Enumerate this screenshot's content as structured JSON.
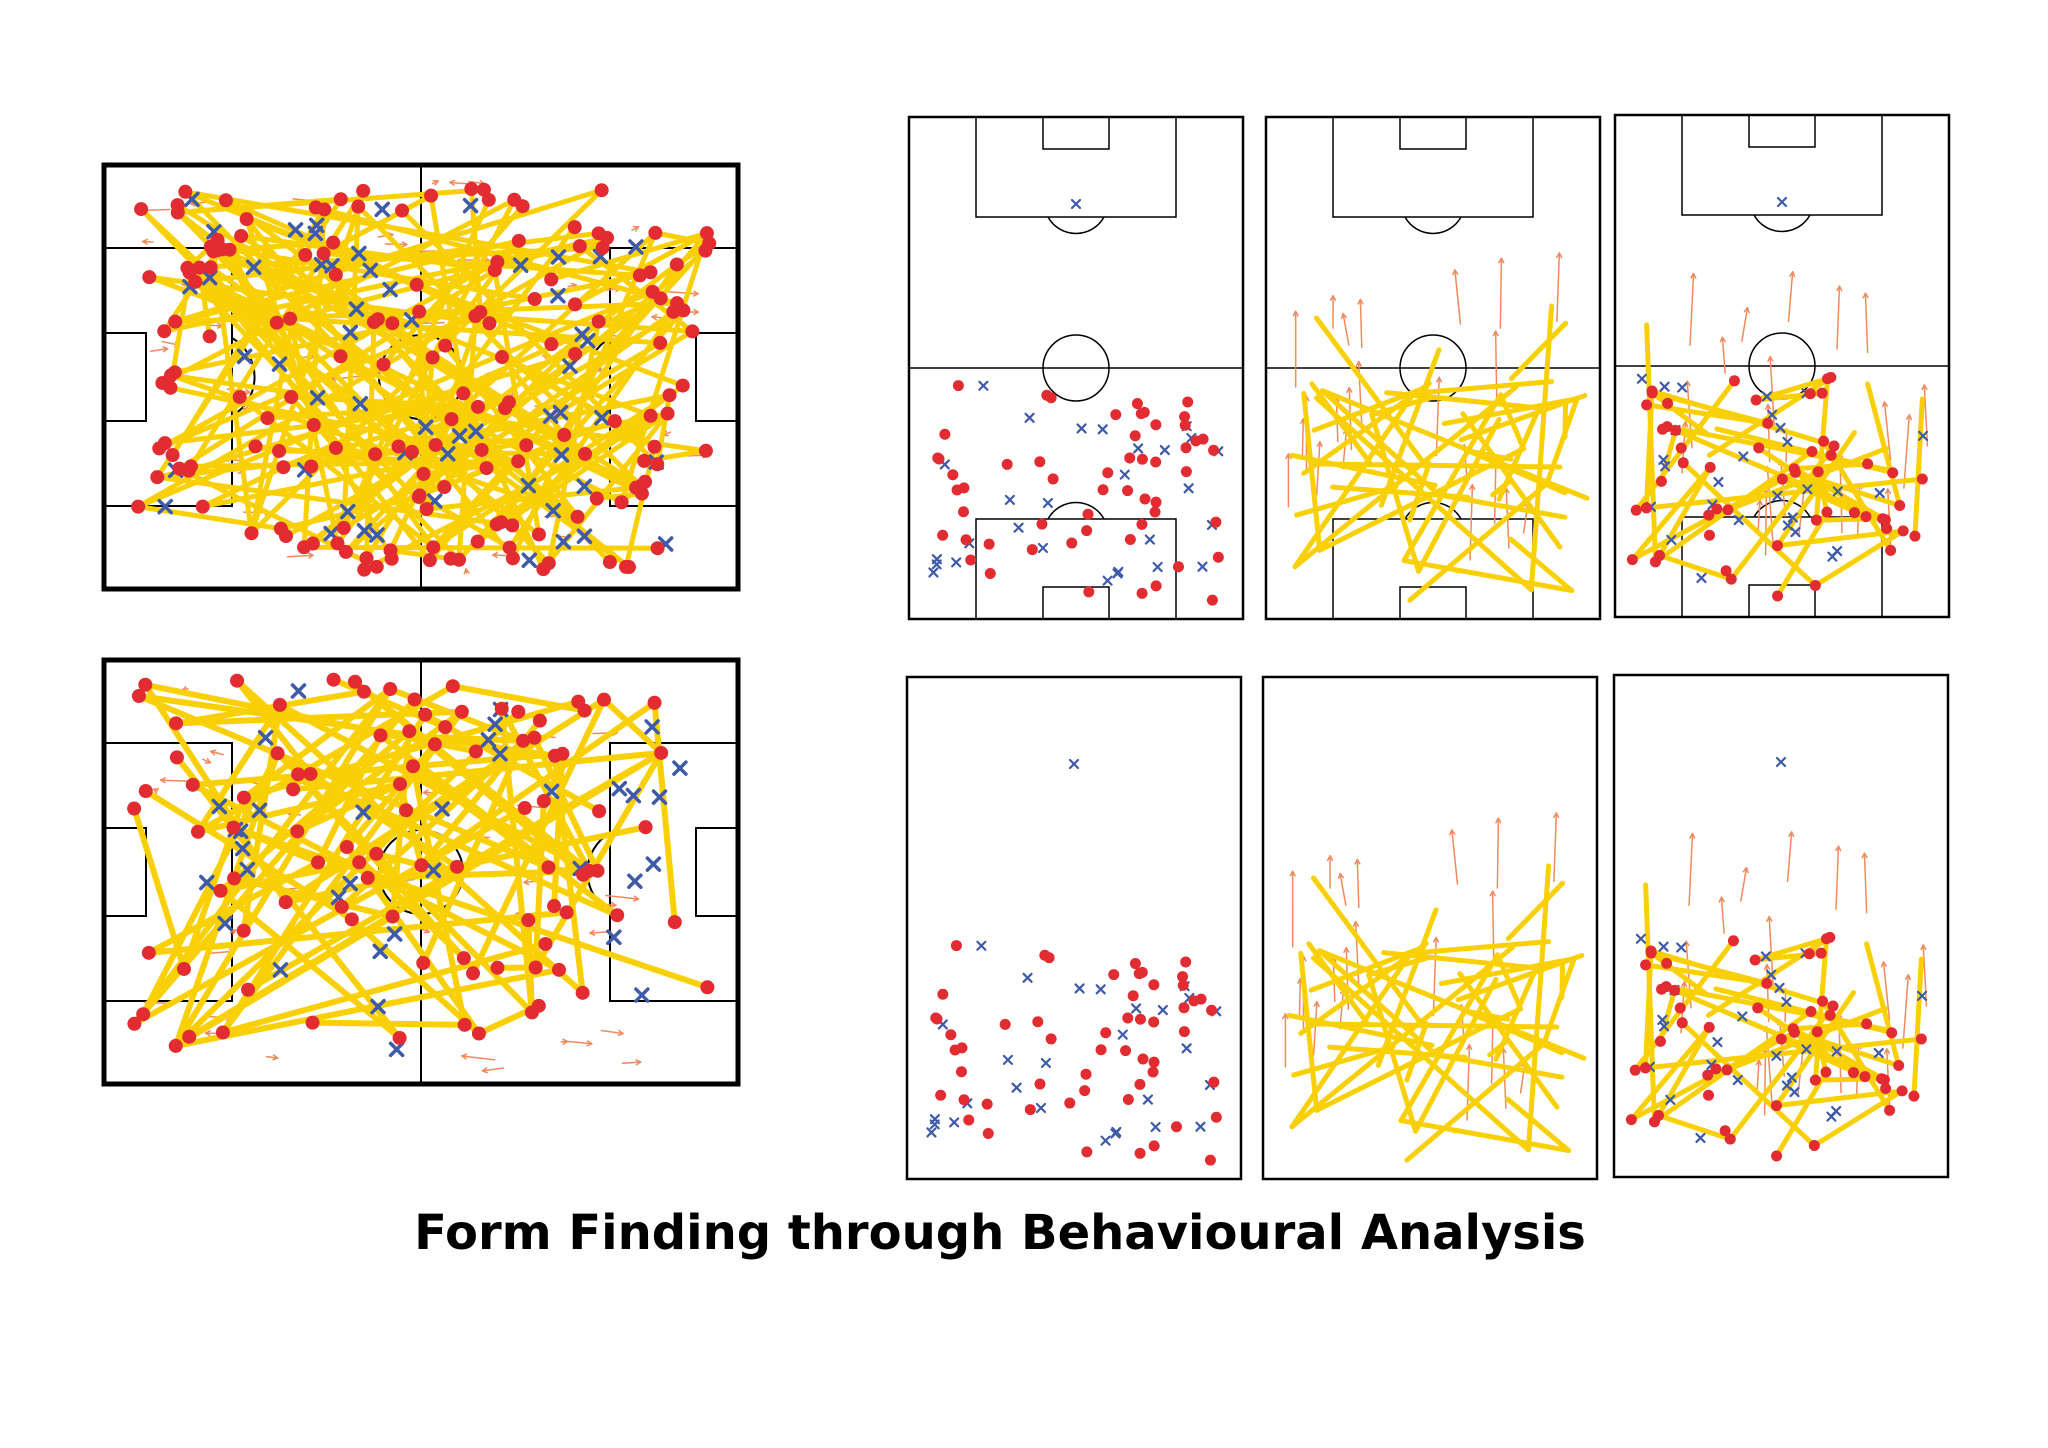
{
  "title": "Form Finding through Behavioural Analysis",
  "colors": {
    "path": "#f8d005",
    "player": "#e32b32",
    "opponent": "#3e5aa8",
    "arrow": "#f08a5c",
    "line": "#000000"
  },
  "panels": [
    {
      "name": "full-pitch-density-panel",
      "type": "full-pitch",
      "density": "high",
      "seed": 11
    },
    {
      "name": "full-pitch-sparse-panel",
      "type": "full-pitch",
      "density": "medium",
      "seed": 23
    },
    {
      "name": "half-pitch-markings-points-panel",
      "type": "half-pitch",
      "markings": true,
      "content": "points",
      "seed": 37
    },
    {
      "name": "half-pitch-markings-paths-panel",
      "type": "half-pitch",
      "markings": true,
      "content": "paths",
      "seed": 41
    },
    {
      "name": "half-pitch-markings-combined-panel",
      "type": "half-pitch",
      "markings": true,
      "content": "combined",
      "seed": 53
    },
    {
      "name": "half-pitch-blank-points-panel",
      "type": "half-pitch",
      "markings": false,
      "content": "points",
      "seed": 37
    },
    {
      "name": "half-pitch-blank-paths-panel",
      "type": "half-pitch",
      "markings": false,
      "content": "paths",
      "seed": 41
    },
    {
      "name": "half-pitch-blank-combined-panel",
      "type": "half-pitch",
      "markings": false,
      "content": "combined",
      "seed": 53
    }
  ]
}
